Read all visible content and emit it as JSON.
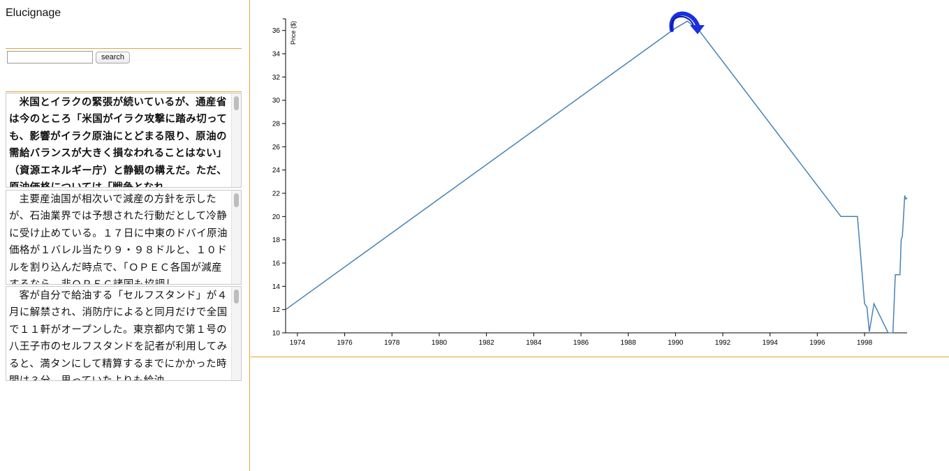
{
  "app": {
    "title": "Elucignage"
  },
  "search": {
    "value": "",
    "button_label": "search"
  },
  "articles": [
    {
      "text": "米国とイラクの緊張が続いているが、通産省は今のところ「米国がイラク攻撃に踏み切っても、影響がイラク原油にとどまる限り、原油の需給バランスが大きく損なわれることはない」（資源エネルギー庁）と静観の構えだ。ただ、原油価格については「戦争となれ",
      "bold": true
    },
    {
      "text": "主要産油国が相次いで減産の方針を示したが、石油業界では予想された行動だとして冷静に受け止めている。１７日に中東のドバイ原油価格が１バレル当たり９・９８ドルと、１０ドルを割り込んだ時点で、「ＯＰＥＣ各国が減産するなら、非ＯＰＥＣ諸国も協調し",
      "bold": false
    },
    {
      "text": "客が自分で給油する「セルフスタンド」が４月に解禁され、消防庁によると同月だけで全国で１１軒がオープンした。東京都内で第１号の八王子市のセルフスタンドを記者が利用してみると、満タンにして精算するまでにかかった時間は３分。思っていたよりも給油",
      "bold": false
    }
  ],
  "chart_data": {
    "type": "line",
    "title": "",
    "xlabel": "",
    "ylabel": "Price ($)",
    "xlim": [
      1973.5,
      1999.8
    ],
    "ylim": [
      10,
      37
    ],
    "x_ticks": [
      "1974",
      "1976",
      "1978",
      "1980",
      "1982",
      "1984",
      "1986",
      "1988",
      "1990",
      "1992",
      "1994",
      "1996",
      "1998"
    ],
    "y_ticks": [
      "10",
      "12",
      "14",
      "16",
      "18",
      "20",
      "22",
      "24",
      "26",
      "28",
      "30",
      "32",
      "34",
      "36"
    ],
    "grid": false,
    "series": [
      {
        "color": "#4682b4",
        "x": [
          1973.5,
          1990.0,
          1990.5,
          1991.0,
          1997.0,
          1997.7,
          1997.9,
          1998.0,
          1998.1,
          1998.2,
          1998.4,
          1999.0,
          1999.2,
          1999.3,
          1999.5,
          1999.55,
          1999.6,
          1999.65,
          1999.7,
          1999.75,
          1999.8
        ],
        "y": [
          12.0,
          36.2,
          36.8,
          36.0,
          20.0,
          20.0,
          15.0,
          12.5,
          12.2,
          10.1,
          12.5,
          10.0,
          10.0,
          15.0,
          15.0,
          18.0,
          18.3,
          20.0,
          21.8,
          21.5,
          21.6
        ]
      }
    ],
    "annotation": {
      "icon": "blue-curved-arrow-icon",
      "color": "#1a2fe0"
    }
  }
}
